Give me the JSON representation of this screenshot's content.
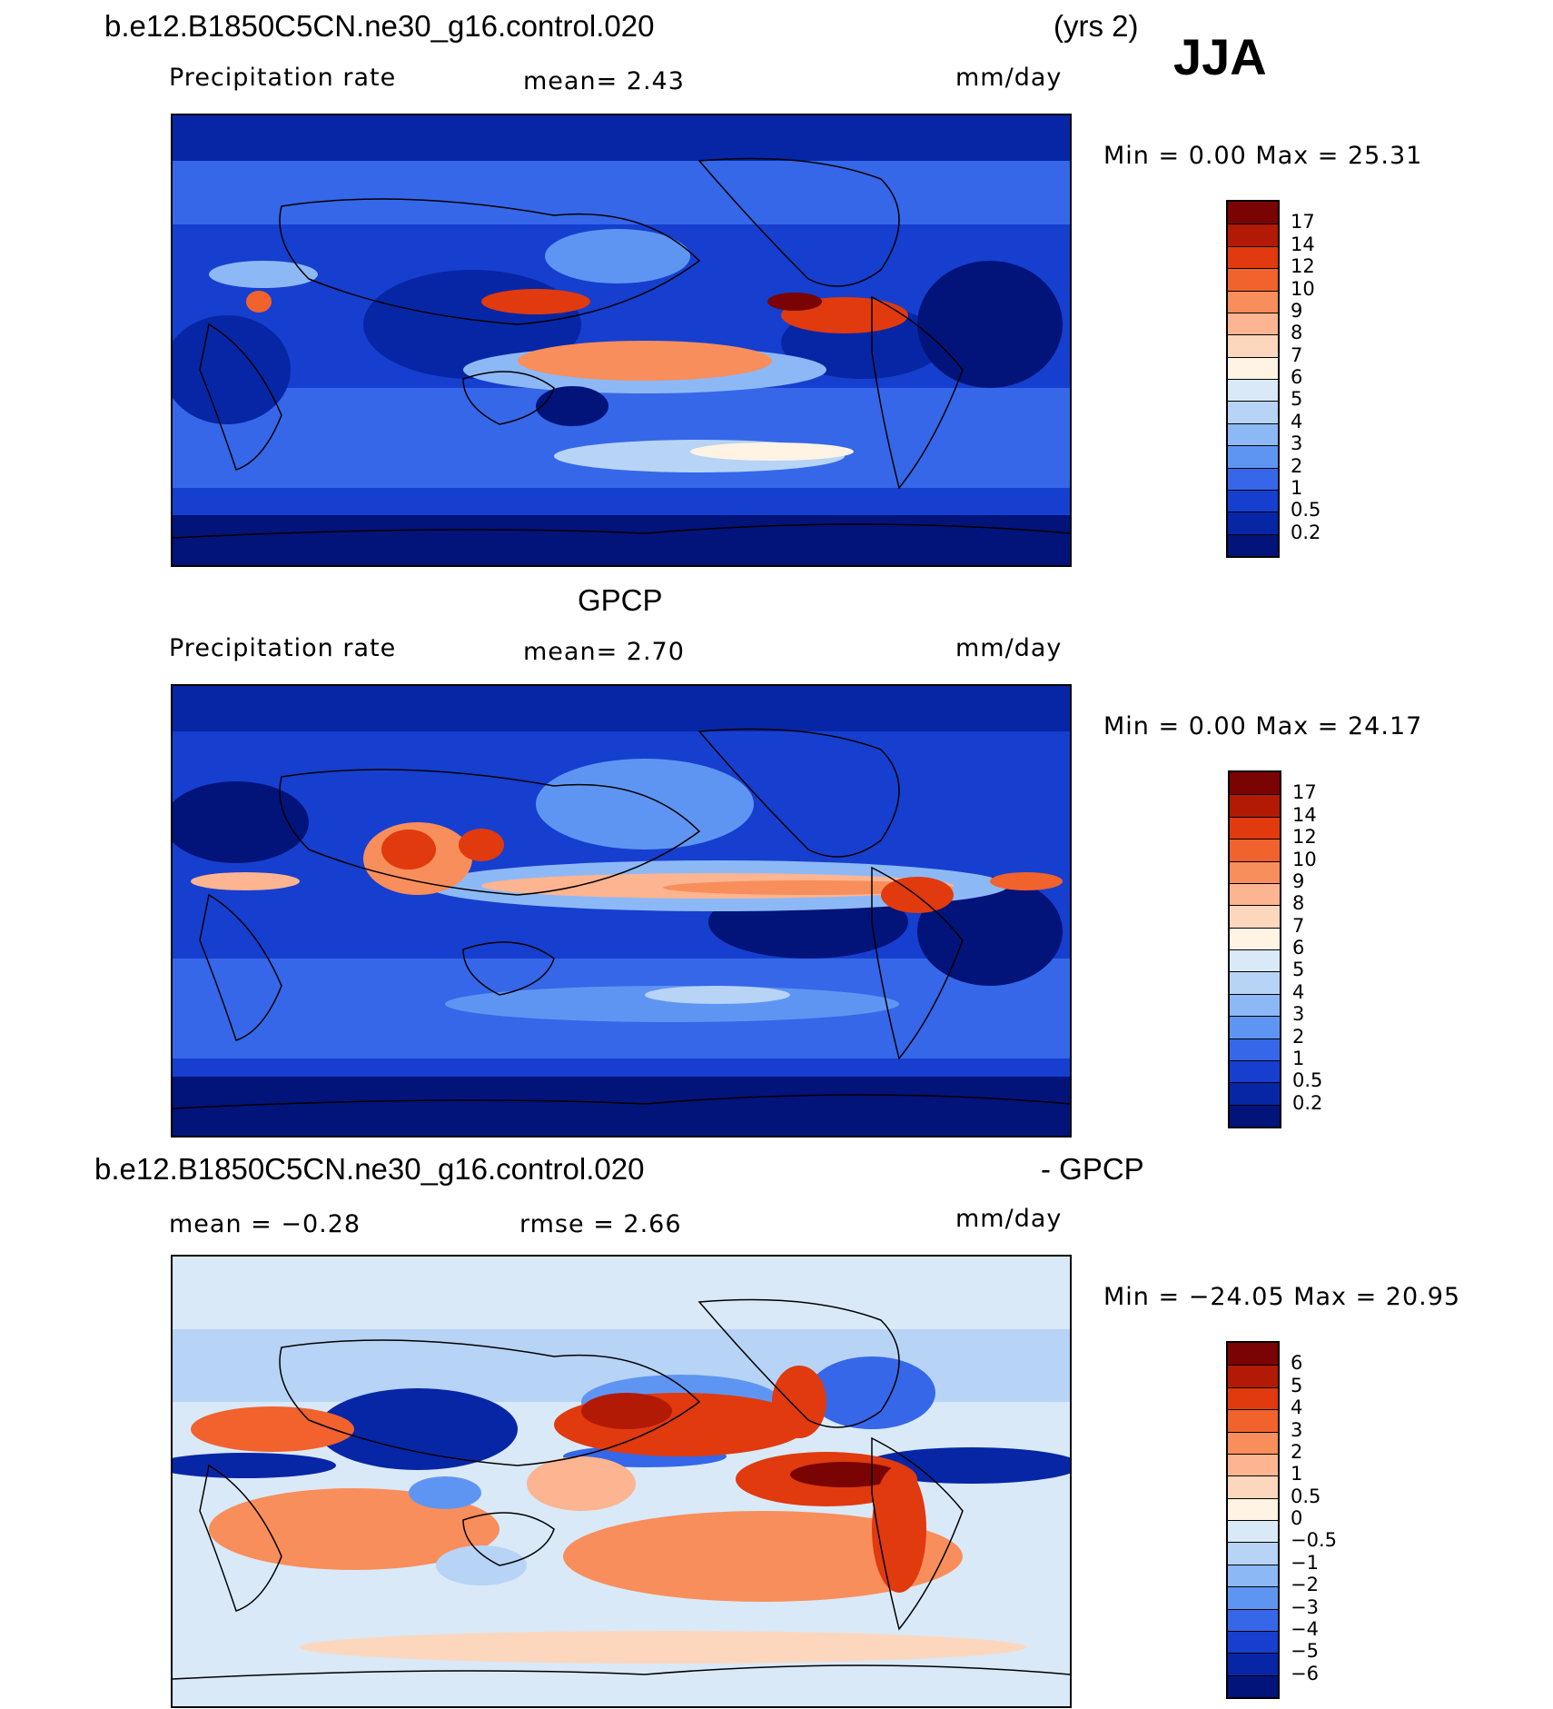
{
  "header": {
    "case_name": "b.e12.B1850C5CN.ne30_g16.control.020",
    "years": "(yrs 2)",
    "season": "JJA"
  },
  "panels": [
    {
      "id": "model",
      "title": "",
      "left_label": "Precipitation rate",
      "center_label": "mean=    2.43",
      "units": "mm/day",
      "minmax": "Min  =     0.00  Max  =    25.31",
      "colorbar_ticks": [
        "17",
        "14",
        "12",
        "10",
        "9",
        "8",
        "7",
        "6",
        "5",
        "4",
        "3",
        "2",
        "1",
        "0.5",
        "0.2"
      ]
    },
    {
      "id": "obs",
      "title": "GPCP",
      "left_label": "Precipitation rate",
      "center_label": "mean=    2.70",
      "units": "mm/day",
      "minmax": "Min  =     0.00  Max  =    24.17",
      "colorbar_ticks": [
        "17",
        "14",
        "12",
        "10",
        "9",
        "8",
        "7",
        "6",
        "5",
        "4",
        "3",
        "2",
        "1",
        "0.5",
        "0.2"
      ]
    },
    {
      "id": "diff",
      "title_left": "b.e12.B1850C5CN.ne30_g16.control.020",
      "title_right": "- GPCP",
      "left_label": "mean  =   −0.28",
      "center_label": "rmse  =     2.66",
      "units": "mm/day",
      "minmax": "Min  = −24.05  Max  =    20.95",
      "colorbar_ticks": [
        "6",
        "5",
        "4",
        "3",
        "2",
        "1",
        "0.5",
        "0",
        "−0.5",
        "−1",
        "−2",
        "−3",
        "−4",
        "−5",
        "−6"
      ]
    }
  ],
  "colors": {
    "precip_scale": [
      "#7a0403",
      "#b21a05",
      "#e03a0e",
      "#f1622d",
      "#f88e5b",
      "#fcb491",
      "#fdd7bd",
      "#fff3e3",
      "#d9e9f8",
      "#b7d3f6",
      "#8db8f6",
      "#5f95f2",
      "#3567e8",
      "#163fcf",
      "#0726a6",
      "#02137a"
    ],
    "diff_scale": [
      "#7a0403",
      "#b21a05",
      "#e03a0e",
      "#f1622d",
      "#f88e5b",
      "#fcb491",
      "#fdd7bd",
      "#fff3e3",
      "#d9e9f8",
      "#b7d3f6",
      "#8db8f6",
      "#5f95f2",
      "#3567e8",
      "#163fcf",
      "#0726a6",
      "#02137a"
    ]
  },
  "chart_data": [
    {
      "type": "heatmap",
      "title": "b.e12.B1850C5CN.ne30_g16.control.020 (yrs 2) JJA",
      "subtitle": "Precipitation rate",
      "units": "mm/day",
      "mean": 2.43,
      "min": 0.0,
      "max": 25.31,
      "contour_levels": [
        0.2,
        0.5,
        1,
        2,
        3,
        4,
        5,
        6,
        7,
        8,
        9,
        10,
        12,
        14,
        17
      ]
    },
    {
      "type": "heatmap",
      "title": "GPCP",
      "subtitle": "Precipitation rate",
      "units": "mm/day",
      "mean": 2.7,
      "min": 0.0,
      "max": 24.17,
      "contour_levels": [
        0.2,
        0.5,
        1,
        2,
        3,
        4,
        5,
        6,
        7,
        8,
        9,
        10,
        12,
        14,
        17
      ]
    },
    {
      "type": "heatmap",
      "title": "b.e12.B1850C5CN.ne30_g16.control.020 - GPCP",
      "units": "mm/day",
      "mean": -0.28,
      "rmse": 2.66,
      "min": -24.05,
      "max": 20.95,
      "contour_levels": [
        -6,
        -5,
        -4,
        -3,
        -2,
        -1,
        -0.5,
        0,
        0.5,
        1,
        2,
        3,
        4,
        5,
        6
      ]
    }
  ]
}
